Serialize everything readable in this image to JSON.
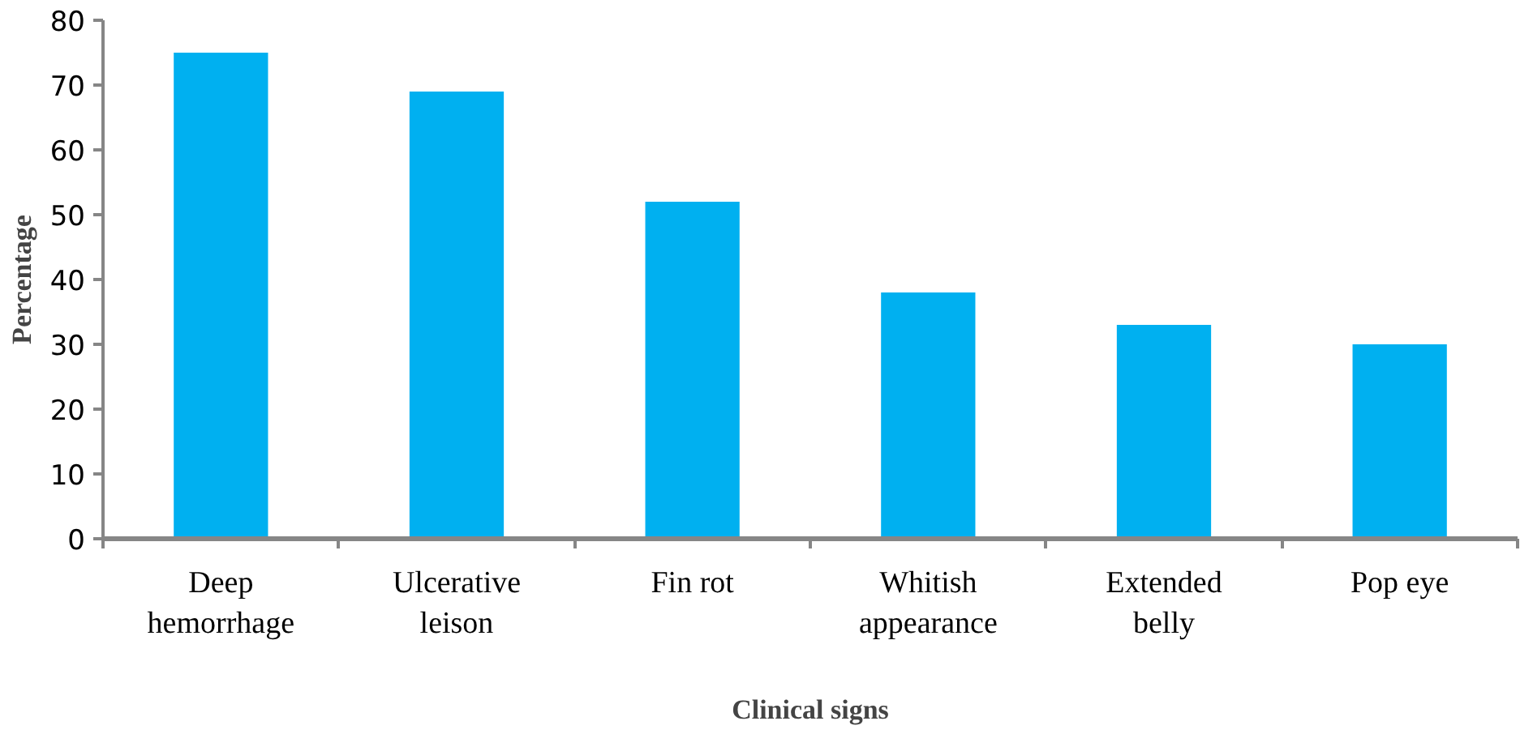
{
  "chart_data": {
    "type": "bar",
    "xlabel": "Clinical signs",
    "ylabel": "Percentage",
    "categories": [
      "Deep hemorrhage",
      "Ulcerative leison",
      "Fin rot",
      "Whitish appearance",
      "Extended belly",
      "Pop eye"
    ],
    "values": [
      75,
      69,
      52,
      38,
      33,
      30
    ],
    "color": "#00b0f0",
    "ylim": [
      0,
      80
    ],
    "yticks": [
      0,
      10,
      20,
      30,
      40,
      50,
      60,
      70,
      80
    ],
    "grid": false
  }
}
